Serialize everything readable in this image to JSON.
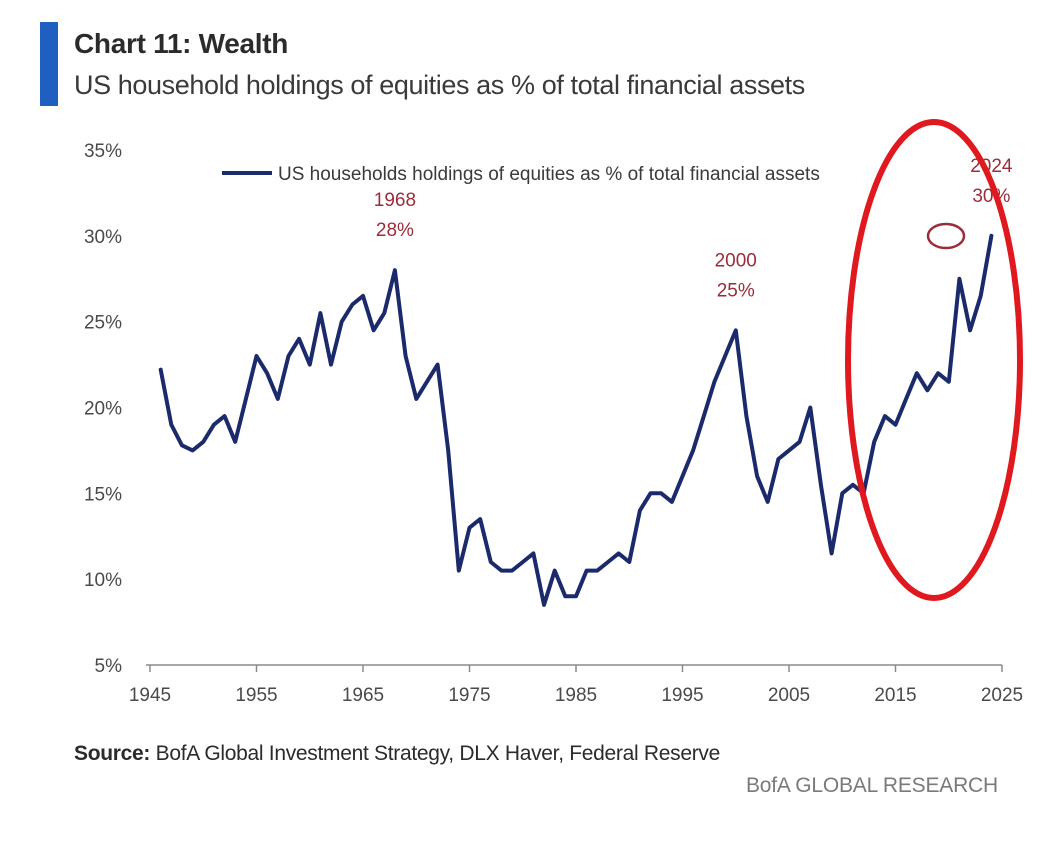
{
  "header": {
    "title": "Chart 11: Wealth",
    "subtitle": "US household holdings of equities as % of total financial assets"
  },
  "footer": {
    "source_label": "Source:",
    "source_text": "BofA Global Investment Strategy, DLX Haver, Federal Reserve",
    "brand": "BofA GLOBAL RESEARCH"
  },
  "colors": {
    "accent": "#1f5fbf",
    "series": "#1b2a6b",
    "annotation": "#9b2c3a",
    "highlight": "#e0191f"
  },
  "chart_data": {
    "type": "line",
    "title": "",
    "xlabel": "",
    "ylabel": "",
    "xlim": [
      1945,
      2025
    ],
    "ylim": [
      5,
      35
    ],
    "x_ticks": [
      "1945",
      "1955",
      "1965",
      "1975",
      "1985",
      "1995",
      "2005",
      "2015",
      "2025"
    ],
    "y_ticks": [
      "5%",
      "10%",
      "15%",
      "20%",
      "25%",
      "30%",
      "35%"
    ],
    "grid": false,
    "legend": "top",
    "series": [
      {
        "name": "US households holdings of equities as % of total financial assets",
        "x": [
          1946,
          1947,
          1948,
          1949,
          1950,
          1951,
          1952,
          1953,
          1954,
          1955,
          1956,
          1957,
          1958,
          1959,
          1960,
          1961,
          1962,
          1963,
          1964,
          1965,
          1966,
          1967,
          1968,
          1969,
          1970,
          1971,
          1972,
          1973,
          1974,
          1975,
          1976,
          1977,
          1978,
          1979,
          1980,
          1981,
          1982,
          1983,
          1984,
          1985,
          1986,
          1987,
          1988,
          1989,
          1990,
          1991,
          1992,
          1993,
          1994,
          1995,
          1996,
          1997,
          1998,
          1999,
          2000,
          2001,
          2002,
          2003,
          2004,
          2005,
          2006,
          2007,
          2008,
          2009,
          2010,
          2011,
          2012,
          2013,
          2014,
          2015,
          2016,
          2017,
          2018,
          2019,
          2020,
          2021,
          2022,
          2023,
          2024
        ],
        "values": [
          22.2,
          19.0,
          17.8,
          17.5,
          18.0,
          19.0,
          19.5,
          18.0,
          20.5,
          23.0,
          22.0,
          20.5,
          23.0,
          24.0,
          22.5,
          25.5,
          22.5,
          25.0,
          26.0,
          26.5,
          24.5,
          25.5,
          28.0,
          23.0,
          20.5,
          21.5,
          22.5,
          17.5,
          10.5,
          13.0,
          13.5,
          11.0,
          10.5,
          10.5,
          11.0,
          11.5,
          8.5,
          10.5,
          9.0,
          9.0,
          10.5,
          10.5,
          11.0,
          11.5,
          11.0,
          14.0,
          15.0,
          15.0,
          14.5,
          16.0,
          17.5,
          19.5,
          21.5,
          23.0,
          24.5,
          19.5,
          16.0,
          14.5,
          17.0,
          17.5,
          18.0,
          20.0,
          15.5,
          11.5,
          15.0,
          15.5,
          15.0,
          18.0,
          19.5,
          19.0,
          20.5,
          22.0,
          21.0,
          22.0,
          21.5,
          27.5,
          24.5,
          26.5,
          30.0
        ]
      }
    ],
    "annotations": [
      {
        "label_year": "1968",
        "label_value": "28%",
        "x": 1968,
        "y": 28
      },
      {
        "label_year": "2000",
        "label_value": "25%",
        "x": 2000,
        "y": 24.5
      },
      {
        "label_year": "2024",
        "label_value": "30%",
        "x": 2024,
        "y": 30
      }
    ]
  }
}
